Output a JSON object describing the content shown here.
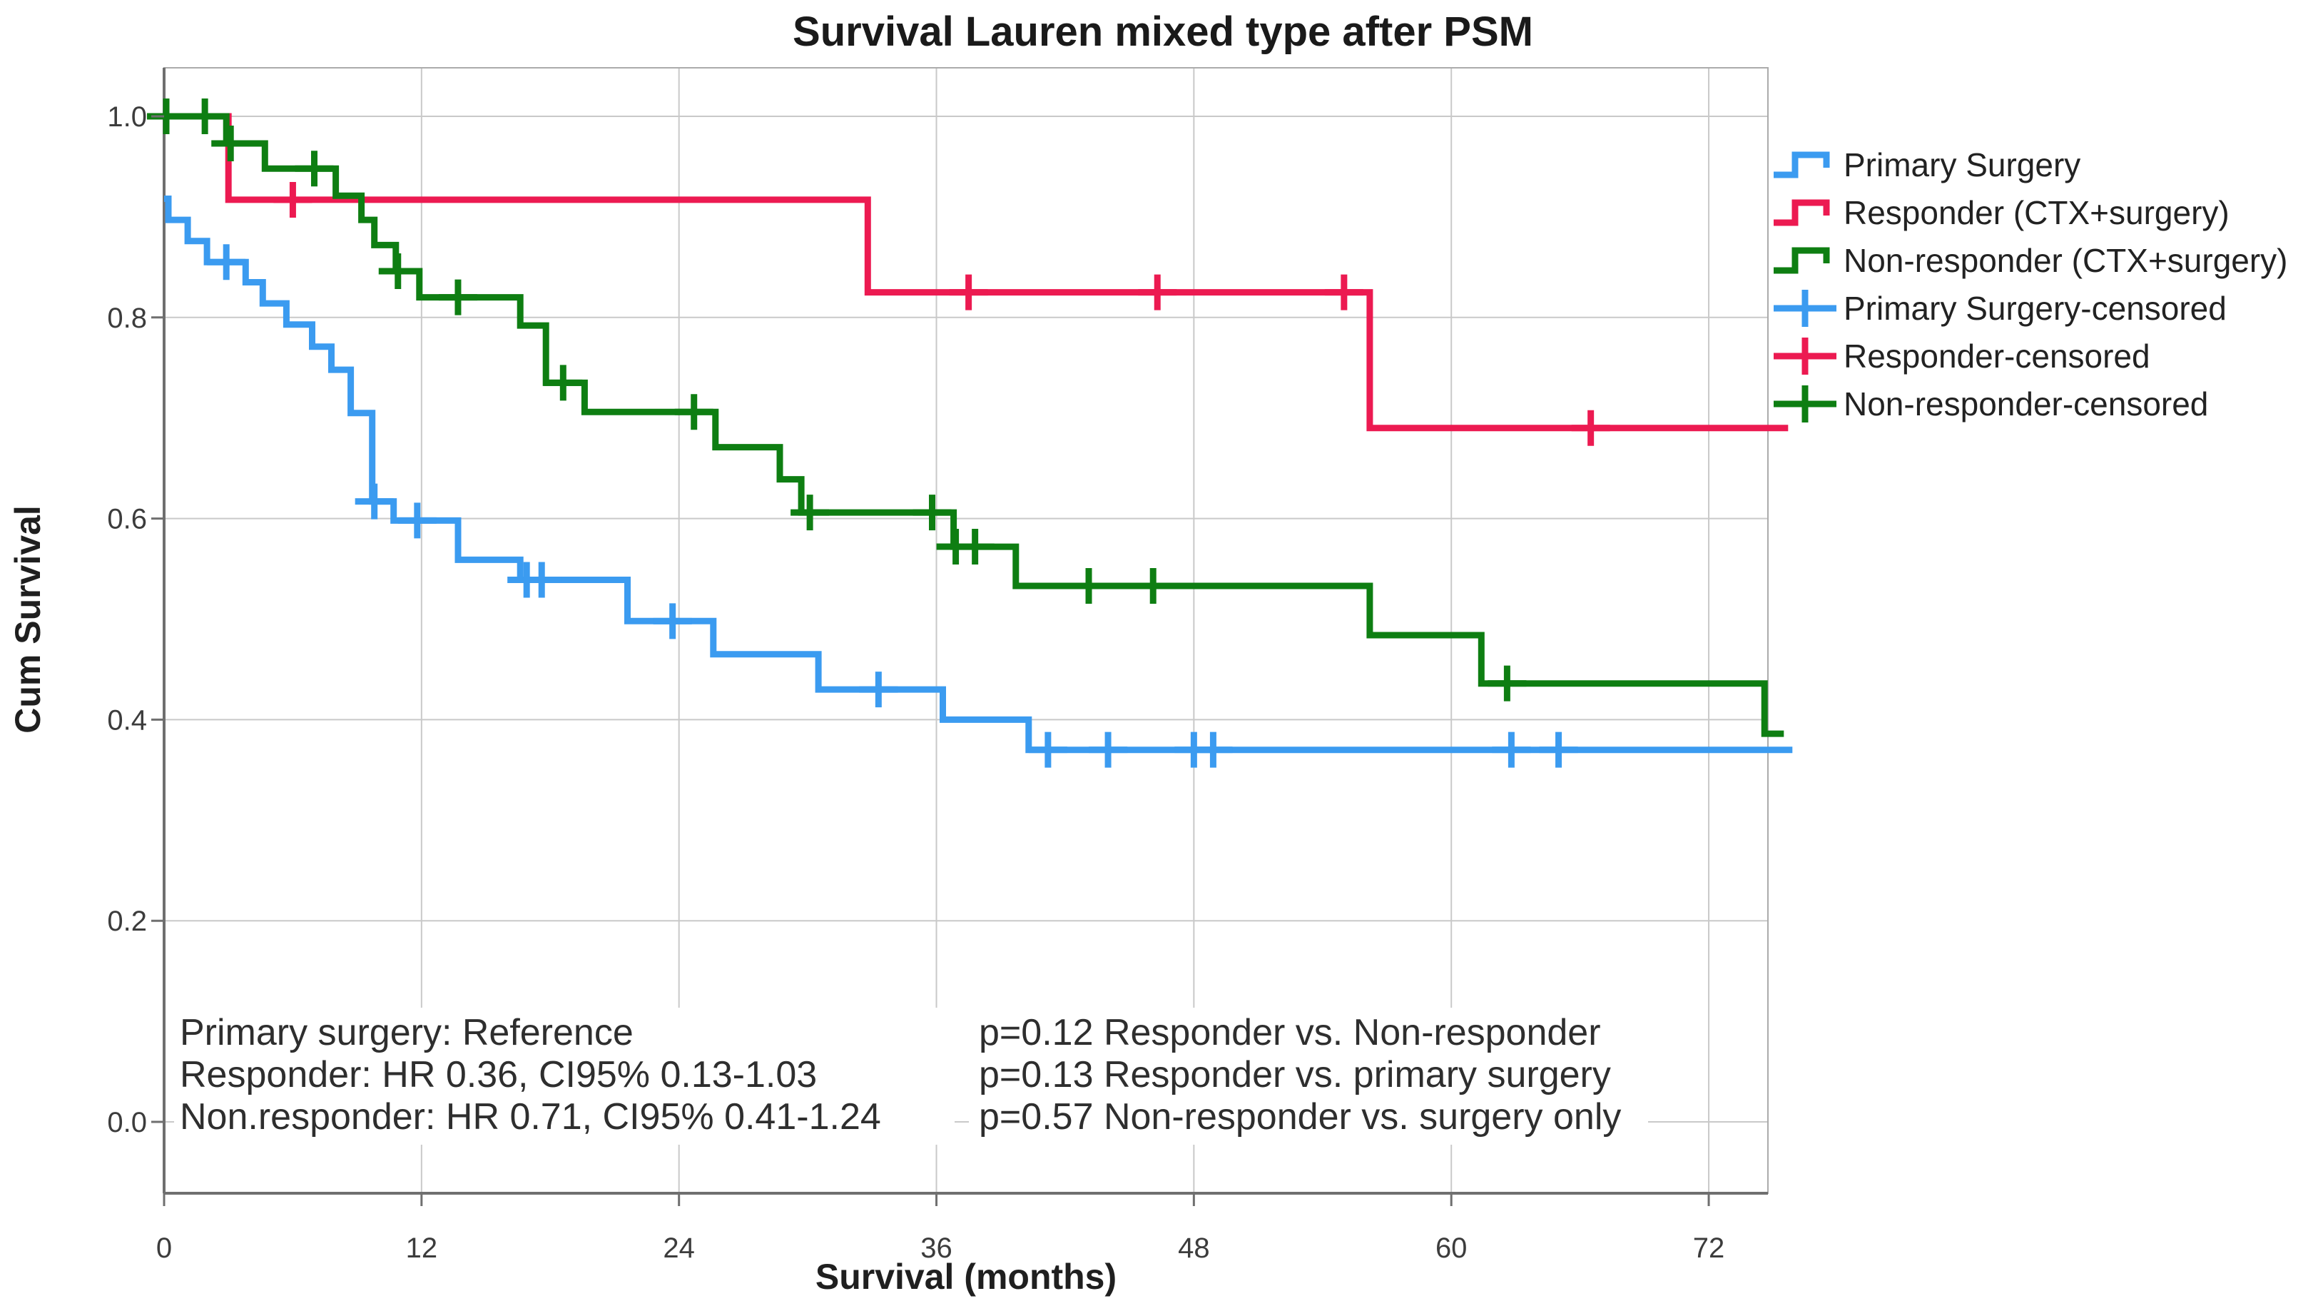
{
  "chart_data": {
    "type": "line",
    "subtype": "kaplan-meier-step",
    "title": "Survival Lauren mixed type after PSM",
    "xlabel": "Survival (months)",
    "ylabel": "Cum Survival",
    "xlim": [
      0,
      74.7
    ],
    "ylim": [
      0.0,
      1.07
    ],
    "xticks": [
      0,
      12,
      24,
      36,
      48,
      60,
      72
    ],
    "yticks": [
      {
        "value": 0.0,
        "label": "0.0"
      },
      {
        "value": 0.2,
        "label": "0.2"
      },
      {
        "value": 0.4,
        "label": "0.4"
      },
      {
        "value": 0.6,
        "label": "0.6"
      },
      {
        "value": 0.8,
        "label": "0.8"
      },
      {
        "value": 1.0,
        "label": "1.0"
      }
    ],
    "grid": true,
    "legend_position": "right",
    "series": [
      {
        "name": "Responder (CTX+surgery)",
        "slug": "responder",
        "color": "#EC1A51",
        "start_survival": 1.0,
        "steps": [
          [
            3.0,
            0.917
          ],
          [
            32.8,
            0.825
          ],
          [
            56.2,
            0.69
          ]
        ],
        "end_month": 75.7,
        "censors": [
          [
            6.0,
            0.917
          ],
          [
            37.5,
            0.825
          ],
          [
            46.3,
            0.825
          ],
          [
            55.0,
            0.825
          ],
          [
            66.5,
            0.69
          ]
        ]
      },
      {
        "name": "Primary Surgery",
        "slug": "primary-surgery",
        "color": "#3B9BF0",
        "start_survival": 0.918,
        "steps": [
          [
            0.2,
            0.897
          ],
          [
            1.1,
            0.876
          ],
          [
            2.0,
            0.855
          ],
          [
            3.8,
            0.835
          ],
          [
            4.6,
            0.814
          ],
          [
            5.7,
            0.793
          ],
          [
            6.9,
            0.771
          ],
          [
            7.8,
            0.748
          ],
          [
            8.7,
            0.705
          ],
          [
            9.7,
            0.617
          ],
          [
            10.7,
            0.598
          ],
          [
            13.7,
            0.559
          ],
          [
            16.6,
            0.539
          ],
          [
            21.6,
            0.498
          ],
          [
            25.6,
            0.465
          ],
          [
            30.5,
            0.43
          ],
          [
            36.3,
            0.4
          ],
          [
            40.3,
            0.37
          ]
        ],
        "end_month": 75.9,
        "censors": [
          [
            2.9,
            0.855
          ],
          [
            9.8,
            0.617
          ],
          [
            11.8,
            0.598
          ],
          [
            16.9,
            0.539
          ],
          [
            17.6,
            0.539
          ],
          [
            23.7,
            0.498
          ],
          [
            33.3,
            0.43
          ],
          [
            41.2,
            0.37
          ],
          [
            44.0,
            0.37
          ],
          [
            48.0,
            0.37
          ],
          [
            48.9,
            0.37
          ],
          [
            62.8,
            0.37
          ],
          [
            65.0,
            0.37
          ]
        ]
      },
      {
        "name": "Non-responder (CTX+surgery)",
        "slug": "non-responder",
        "color": "#0E7E12",
        "start_survival": 1.0,
        "steps": [
          [
            2.9,
            0.973
          ],
          [
            4.7,
            0.948
          ],
          [
            8.0,
            0.921
          ],
          [
            9.2,
            0.897
          ],
          [
            9.8,
            0.872
          ],
          [
            10.8,
            0.846
          ],
          [
            11.9,
            0.82
          ],
          [
            16.6,
            0.792
          ],
          [
            17.8,
            0.735
          ],
          [
            19.6,
            0.706
          ],
          [
            25.7,
            0.671
          ],
          [
            28.7,
            0.639
          ],
          [
            29.7,
            0.606
          ],
          [
            36.8,
            0.572
          ],
          [
            39.7,
            0.533
          ],
          [
            56.2,
            0.484
          ],
          [
            61.4,
            0.436
          ],
          [
            74.6,
            0.386
          ]
        ],
        "end_month": 75.5,
        "censors": [
          [
            0.1,
            1.0
          ],
          [
            1.9,
            1.0
          ],
          [
            3.1,
            0.973
          ],
          [
            7.0,
            0.948
          ],
          [
            10.9,
            0.846
          ],
          [
            13.7,
            0.82
          ],
          [
            18.6,
            0.735
          ],
          [
            24.7,
            0.706
          ],
          [
            30.1,
            0.606
          ],
          [
            35.8,
            0.606
          ],
          [
            36.9,
            0.572
          ],
          [
            37.8,
            0.572
          ],
          [
            43.1,
            0.533
          ],
          [
            46.1,
            0.533
          ],
          [
            62.6,
            0.436
          ]
        ]
      }
    ],
    "legend": [
      {
        "label": "Primary Surgery",
        "color": "#3B9BF0",
        "symbol": "step-line"
      },
      {
        "label": "Responder (CTX+surgery)",
        "color": "#EC1A51",
        "symbol": "step-line"
      },
      {
        "label": "Non-responder (CTX+surgery)",
        "color": "#0E7E12",
        "symbol": "step-line"
      },
      {
        "label": "Primary Surgery-censored",
        "color": "#3B9BF0",
        "symbol": "plus"
      },
      {
        "label": "Responder-censored",
        "color": "#EC1A51",
        "symbol": "plus"
      },
      {
        "label": "Non-responder-censored",
        "color": "#0E7E12",
        "symbol": "plus"
      }
    ],
    "annotations": {
      "left_lines": [
        "Primary surgery: Reference",
        "Responder: HR 0.36, CI95% 0.13-1.03",
        "Non.responder: HR 0.71, CI95% 0.41-1.24"
      ],
      "right_lines": [
        "p=0.12 Responder vs. Non-responder",
        "p=0.13 Responder vs. primary surgery",
        "p=0.57 Non-responder vs. surgery only"
      ]
    },
    "style": {
      "grid_color": "#C9C9C9",
      "frame_color": "#ABABAB",
      "axis_color": "#6F6F6F",
      "background": "#FFFFFF",
      "line_width": 9
    }
  }
}
